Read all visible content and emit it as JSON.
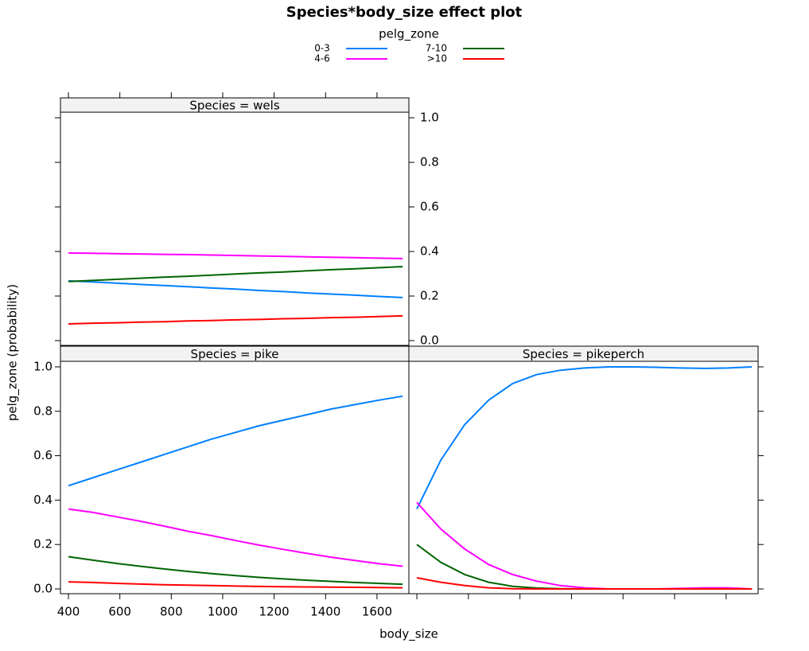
{
  "chart_data": {
    "type": "line",
    "title": "Species*body_size effect plot",
    "legend_title": "pelg_zone",
    "xlabel": "body_size",
    "ylabel": "pelg_zone (probability)",
    "xlim": [
      369,
      1724
    ],
    "xticks": [
      400,
      600,
      800,
      1000,
      1200,
      1400,
      1600
    ],
    "ylim": [
      -0.0215,
      1.025
    ],
    "yticks": [
      {
        "value": 0,
        "label": "0.0"
      },
      0.2,
      0.4,
      0.6,
      0.8,
      {
        "value": 1,
        "label": "1.0"
      }
    ],
    "x": [
      400,
      492.9,
      585.7,
      678.6,
      771.4,
      864.3,
      957.1,
      1050,
      1142.9,
      1235.7,
      1328.6,
      1421.4,
      1514.3,
      1607.1,
      1700
    ],
    "series": [
      {
        "name": "0-3",
        "color": "#0080ff"
      },
      {
        "name": "4-6",
        "color": "#ff00ff"
      },
      {
        "name": "7-10",
        "color": "#006400"
      },
      {
        "name": ">10",
        "color": "#ff0000"
      }
    ],
    "panels": [
      {
        "title": "Species = wels",
        "series": [
          {
            "values": [
              0.268,
              0.263,
              0.258,
              0.252,
              0.247,
              0.242,
              0.236,
              0.231,
              0.225,
              0.22,
              0.214,
              0.209,
              0.204,
              0.198,
              0.193
            ]
          },
          {
            "values": [
              0.393,
              0.392,
              0.39,
              0.389,
              0.387,
              0.386,
              0.384,
              0.382,
              0.38,
              0.378,
              0.376,
              0.374,
              0.372,
              0.37,
              0.368
            ]
          },
          {
            "values": [
              0.265,
              0.27,
              0.275,
              0.28,
              0.285,
              0.289,
              0.294,
              0.299,
              0.304,
              0.308,
              0.313,
              0.318,
              0.322,
              0.327,
              0.332
            ]
          },
          {
            "values": [
              0.075,
              0.078,
              0.08,
              0.083,
              0.085,
              0.088,
              0.09,
              0.093,
              0.095,
              0.098,
              0.1,
              0.103,
              0.105,
              0.108,
              0.111
            ]
          }
        ]
      },
      {
        "title": "Species = pike",
        "series": [
          {
            "values": [
              0.465,
              0.5,
              0.535,
              0.57,
              0.605,
              0.64,
              0.675,
              0.705,
              0.735,
              0.76,
              0.785,
              0.81,
              0.83,
              0.85,
              0.868
            ]
          },
          {
            "values": [
              0.36,
              0.345,
              0.325,
              0.305,
              0.283,
              0.26,
              0.24,
              0.218,
              0.197,
              0.178,
              0.16,
              0.143,
              0.128,
              0.114,
              0.102
            ]
          },
          {
            "values": [
              0.145,
              0.13,
              0.115,
              0.102,
              0.09,
              0.079,
              0.069,
              0.06,
              0.052,
              0.045,
              0.039,
              0.034,
              0.029,
              0.025,
              0.021
            ]
          },
          {
            "values": [
              0.032,
              0.029,
              0.025,
              0.022,
              0.019,
              0.017,
              0.015,
              0.013,
              0.011,
              0.01,
              0.009,
              0.008,
              0.007,
              0.006,
              0.005
            ]
          }
        ]
      },
      {
        "title": "Species = pikeperch",
        "series": [
          {
            "values": [
              0.36,
              0.58,
              0.74,
              0.85,
              0.925,
              0.965,
              0.985,
              0.995,
              1.0,
              1.0,
              0.998,
              0.995,
              0.993,
              0.995,
              1.0
            ]
          },
          {
            "values": [
              0.39,
              0.27,
              0.18,
              0.11,
              0.065,
              0.035,
              0.015,
              0.005,
              0,
              0,
              0,
              0.002,
              0.005,
              0.005,
              0
            ]
          },
          {
            "values": [
              0.2,
              0.12,
              0.065,
              0.03,
              0.012,
              0.004,
              0.001,
              0,
              0,
              0,
              0,
              0,
              0,
              0,
              0
            ]
          },
          {
            "values": [
              0.05,
              0.03,
              0.015,
              0.005,
              0.001,
              0,
              0,
              0,
              0,
              0,
              0,
              0,
              0,
              0,
              0
            ]
          }
        ]
      }
    ]
  }
}
